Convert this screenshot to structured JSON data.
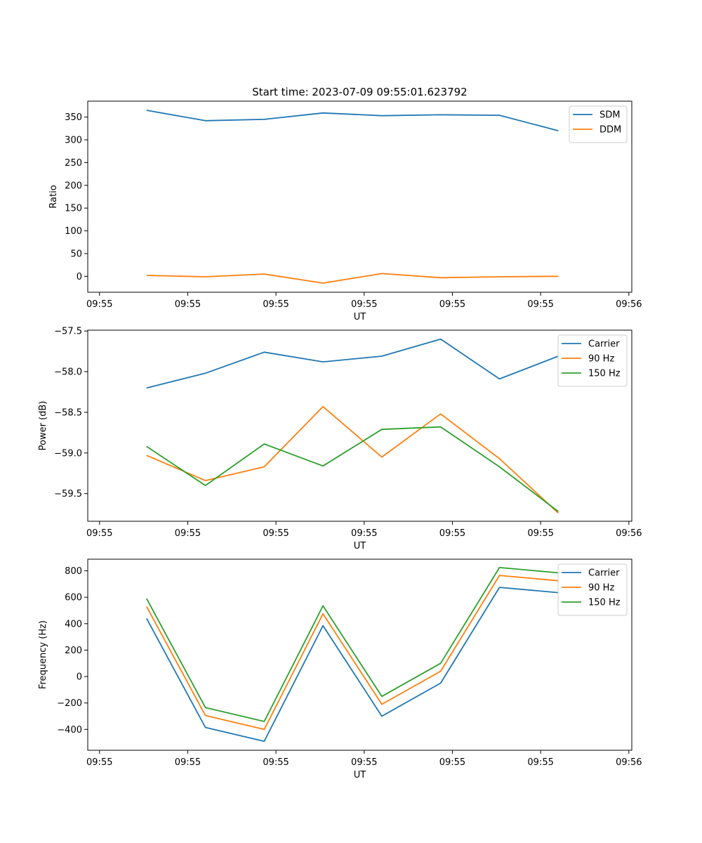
{
  "figure": {
    "title": "Start time: 2023-07-09 09:55:01.623792"
  },
  "colors": {
    "blue": "#1f77b4",
    "orange": "#ff7f0e",
    "green": "#2ca02c"
  },
  "chart_data": [
    {
      "type": "line",
      "title": "Start time: 2023-07-09 09:55:01.623792",
      "xlabel": "UT",
      "ylabel": "Ratio",
      "xlim": [
        0,
        9.25
      ],
      "ylim": [
        -35,
        385
      ],
      "x_ticks": [
        0.2,
        1.7,
        3.2,
        4.7,
        6.2,
        7.7,
        9.2
      ],
      "x_tick_labels": [
        "09:55",
        "09:55",
        "09:55",
        "09:55",
        "09:55",
        "09:55",
        "09:56"
      ],
      "y_ticks": [
        0,
        50,
        100,
        150,
        200,
        250,
        300,
        350
      ],
      "y_tick_labels": [
        "0",
        "50",
        "100",
        "150",
        "200",
        "250",
        "300",
        "350"
      ],
      "legend_position": "top-right",
      "x": [
        1,
        2,
        3,
        4,
        5,
        6,
        7,
        8
      ],
      "series": [
        {
          "name": "SDM",
          "color": "#1f77b4",
          "values": [
            365,
            342,
            345,
            359,
            353,
            355,
            354,
            320
          ]
        },
        {
          "name": "DDM",
          "color": "#ff7f0e",
          "values": [
            2,
            -1,
            5,
            -15,
            6,
            -3,
            -1,
            0
          ]
        }
      ]
    },
    {
      "type": "line",
      "title": "",
      "xlabel": "UT",
      "ylabel": "Power (dB)",
      "xlim": [
        0,
        9.25
      ],
      "ylim": [
        -59.84,
        -57.49
      ],
      "x_ticks": [
        0.2,
        1.7,
        3.2,
        4.7,
        6.2,
        7.7,
        9.2
      ],
      "x_tick_labels": [
        "09:55",
        "09:55",
        "09:55",
        "09:55",
        "09:55",
        "09:55",
        "09:56"
      ],
      "y_ticks": [
        -57.5,
        -58.0,
        -58.5,
        -59.0,
        -59.5
      ],
      "y_tick_labels": [
        "−57.5",
        "−58.0",
        "−58.5",
        "−59.0",
        "−59.5"
      ],
      "legend_position": "top-right",
      "x": [
        1,
        2,
        3,
        4,
        5,
        6,
        7,
        8
      ],
      "series": [
        {
          "name": "Carrier",
          "color": "#1f77b4",
          "values": [
            -58.2,
            -58.02,
            -57.76,
            -57.88,
            -57.81,
            -57.6,
            -58.09,
            -57.81
          ]
        },
        {
          "name": "90 Hz",
          "color": "#ff7f0e",
          "values": [
            -59.03,
            -59.34,
            -59.17,
            -58.43,
            -59.05,
            -58.52,
            -59.07,
            -59.74
          ]
        },
        {
          "name": "150 Hz",
          "color": "#2ca02c",
          "values": [
            -58.92,
            -59.4,
            -58.89,
            -59.16,
            -58.71,
            -58.68,
            -59.17,
            -59.72
          ]
        }
      ]
    },
    {
      "type": "line",
      "title": "",
      "xlabel": "UT",
      "ylabel": "Frequency (Hz)",
      "xlim": [
        0,
        9.25
      ],
      "ylim": [
        -558,
        888
      ],
      "x_ticks": [
        0.2,
        1.7,
        3.2,
        4.7,
        6.2,
        7.7,
        9.2
      ],
      "x_tick_labels": [
        "09:55",
        "09:55",
        "09:55",
        "09:55",
        "09:55",
        "09:55",
        "09:56"
      ],
      "y_ticks": [
        -400,
        -200,
        0,
        200,
        400,
        600,
        800
      ],
      "y_tick_labels": [
        "−400",
        "−200",
        "0",
        "200",
        "400",
        "600",
        "800"
      ],
      "legend_position": "top-right",
      "x": [
        1,
        2,
        3,
        4,
        5,
        6,
        7,
        8
      ],
      "series": [
        {
          "name": "Carrier",
          "color": "#1f77b4",
          "values": [
            440,
            -385,
            -490,
            385,
            -300,
            -50,
            675,
            635
          ]
        },
        {
          "name": "90 Hz",
          "color": "#ff7f0e",
          "values": [
            530,
            -295,
            -400,
            475,
            -210,
            40,
            765,
            725
          ]
        },
        {
          "name": "150 Hz",
          "color": "#2ca02c",
          "values": [
            590,
            -235,
            -340,
            535,
            -150,
            100,
            825,
            785
          ]
        }
      ]
    }
  ]
}
